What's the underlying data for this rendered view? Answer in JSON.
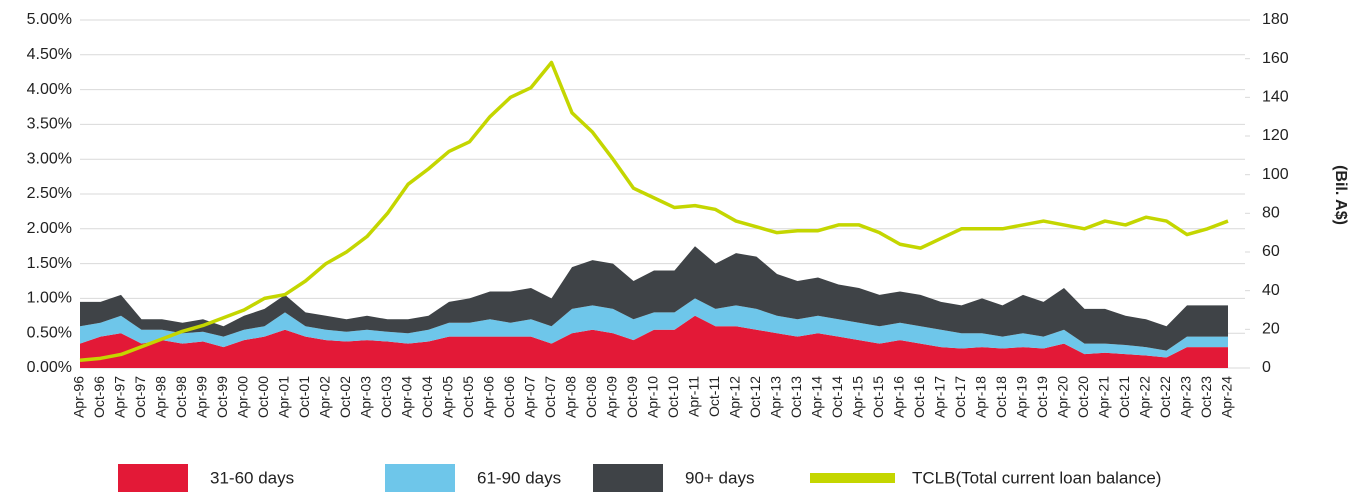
{
  "chart_data": {
    "type": "stacked-area-line",
    "y2label": "(Bil. A$)",
    "categories": [
      "Apr-96",
      "Oct-96",
      "Apr-97",
      "Oct-97",
      "Apr-98",
      "Oct-98",
      "Apr-99",
      "Oct-99",
      "Apr-00",
      "Oct-00",
      "Apr-01",
      "Oct-01",
      "Apr-02",
      "Oct-02",
      "Apr-03",
      "Oct-03",
      "Apr-04",
      "Oct-04",
      "Apr-05",
      "Oct-05",
      "Apr-06",
      "Oct-06",
      "Apr-07",
      "Oct-07",
      "Apr-08",
      "Oct-08",
      "Apr-09",
      "Oct-09",
      "Apr-10",
      "Oct-10",
      "Apr-11",
      "Oct-11",
      "Apr-12",
      "Oct-12",
      "Apr-13",
      "Oct-13",
      "Apr-14",
      "Oct-14",
      "Apr-15",
      "Oct-15",
      "Apr-16",
      "Oct-16",
      "Apr-17",
      "Oct-17",
      "Apr-18",
      "Oct-18",
      "Apr-19",
      "Oct-19",
      "Apr-20",
      "Oct-20",
      "Apr-21",
      "Oct-21",
      "Apr-22",
      "Oct-22",
      "Apr-23",
      "Oct-23",
      "Apr-24"
    ],
    "series": [
      {
        "name": "31-60 days",
        "color": "#e31937",
        "values": [
          0.35,
          0.45,
          0.5,
          0.35,
          0.4,
          0.35,
          0.38,
          0.3,
          0.4,
          0.45,
          0.55,
          0.45,
          0.4,
          0.38,
          0.4,
          0.38,
          0.35,
          0.38,
          0.45,
          0.45,
          0.45,
          0.45,
          0.45,
          0.35,
          0.5,
          0.55,
          0.5,
          0.4,
          0.55,
          0.55,
          0.75,
          0.6,
          0.6,
          0.55,
          0.5,
          0.45,
          0.5,
          0.45,
          0.4,
          0.35,
          0.4,
          0.35,
          0.3,
          0.28,
          0.3,
          0.28,
          0.3,
          0.28,
          0.35,
          0.2,
          0.22,
          0.2,
          0.18,
          0.15,
          0.3,
          0.3,
          0.3
        ]
      },
      {
        "name": "61-90 days",
        "color": "#6ec6ea",
        "values": [
          0.25,
          0.2,
          0.25,
          0.2,
          0.15,
          0.15,
          0.14,
          0.15,
          0.15,
          0.15,
          0.25,
          0.15,
          0.15,
          0.14,
          0.15,
          0.14,
          0.15,
          0.17,
          0.2,
          0.2,
          0.25,
          0.2,
          0.25,
          0.25,
          0.35,
          0.35,
          0.35,
          0.3,
          0.25,
          0.25,
          0.25,
          0.25,
          0.3,
          0.3,
          0.25,
          0.25,
          0.25,
          0.25,
          0.25,
          0.25,
          0.25,
          0.25,
          0.25,
          0.22,
          0.2,
          0.17,
          0.2,
          0.17,
          0.2,
          0.15,
          0.13,
          0.13,
          0.12,
          0.1,
          0.15,
          0.15,
          0.15
        ]
      },
      {
        "name": "90+ days",
        "color": "#3f4347",
        "values": [
          0.35,
          0.3,
          0.3,
          0.15,
          0.15,
          0.15,
          0.18,
          0.15,
          0.2,
          0.25,
          0.25,
          0.2,
          0.2,
          0.18,
          0.2,
          0.18,
          0.2,
          0.2,
          0.3,
          0.35,
          0.4,
          0.45,
          0.45,
          0.4,
          0.6,
          0.65,
          0.65,
          0.55,
          0.6,
          0.6,
          0.75,
          0.65,
          0.75,
          0.75,
          0.6,
          0.55,
          0.55,
          0.5,
          0.5,
          0.45,
          0.45,
          0.45,
          0.4,
          0.4,
          0.5,
          0.45,
          0.55,
          0.5,
          0.6,
          0.5,
          0.5,
          0.42,
          0.4,
          0.35,
          0.45,
          0.45,
          0.45
        ]
      },
      {
        "name": "TCLB(Total current loan balance)",
        "color": "#c4d600",
        "axis": "y2",
        "values": [
          4,
          5,
          7,
          11,
          15,
          19,
          22,
          26,
          30,
          36,
          38,
          45,
          54,
          60,
          68,
          80,
          95,
          103,
          112,
          117,
          130,
          140,
          145,
          158,
          132,
          122,
          108,
          93,
          88,
          83,
          84,
          82,
          76,
          73,
          70,
          71,
          71,
          74,
          74,
          70,
          64,
          62,
          67,
          72,
          72,
          72,
          74,
          76,
          74,
          72,
          76,
          74,
          78,
          76,
          69,
          72,
          76
        ]
      }
    ],
    "ylim": [
      0,
      5
    ],
    "yticks": [
      {
        "value": 0,
        "label": "0.00%"
      },
      {
        "value": 0.5,
        "label": "0.50%"
      },
      {
        "value": 1,
        "label": "1.00%"
      },
      {
        "value": 1.5,
        "label": "1.50%"
      },
      {
        "value": 2,
        "label": "2.00%"
      },
      {
        "value": 2.5,
        "label": "2.50%"
      },
      {
        "value": 3,
        "label": "3.00%"
      },
      {
        "value": 3.5,
        "label": "3.50%"
      },
      {
        "value": 4,
        "label": "4.00%"
      },
      {
        "value": 4.5,
        "label": "4.50%"
      },
      {
        "value": 5,
        "label": "5.00%"
      }
    ],
    "y2lim": [
      0,
      180
    ],
    "y2ticks": [
      0,
      20,
      40,
      60,
      80,
      100,
      120,
      140,
      160,
      180
    ],
    "grid": true,
    "legend": "bottom"
  }
}
